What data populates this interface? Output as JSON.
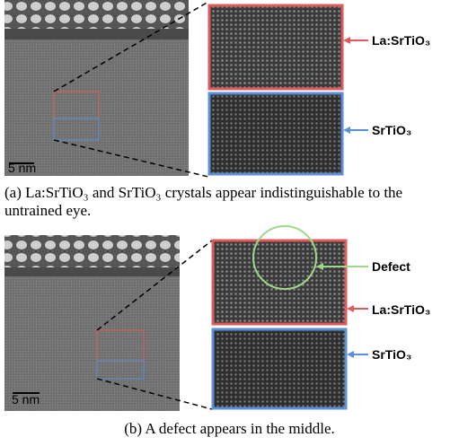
{
  "panel_a": {
    "scale_bar": "5 nm",
    "labels": [
      "La:SrTiO₃",
      "SrTiO₃"
    ],
    "caption": "(a) La:SrTiO₃ and SrTiO₃ crystals appear indistinguishable to the untrained eye."
  },
  "panel_b": {
    "scale_bar": "5 nm",
    "labels": [
      "Defect",
      "La:SrTiO₃",
      "SrTiO₃"
    ],
    "caption": "(b) A defect appears in the middle."
  }
}
